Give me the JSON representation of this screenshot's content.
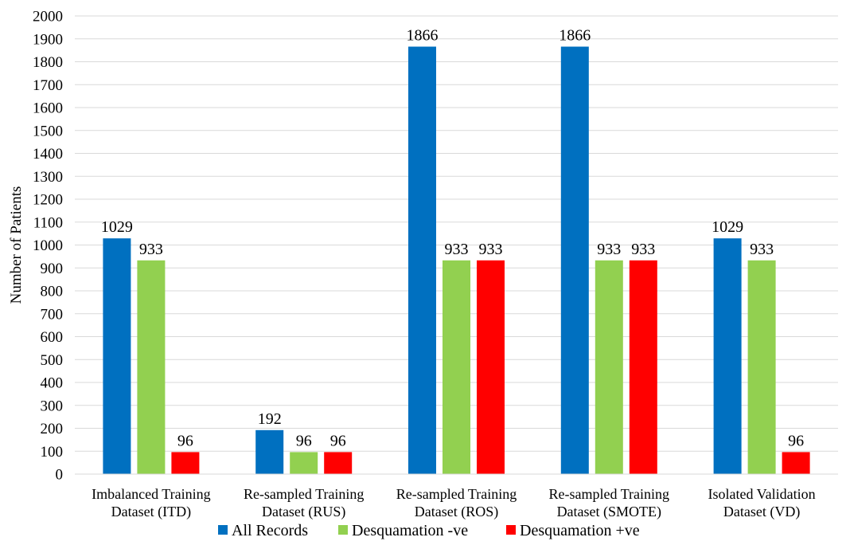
{
  "chart_data": {
    "type": "bar",
    "title": "",
    "xlabel": "",
    "ylabel": "Number of Patients",
    "ylim": [
      0,
      2000
    ],
    "yticks": [
      0,
      100,
      200,
      300,
      400,
      500,
      600,
      700,
      800,
      900,
      1000,
      1100,
      1200,
      1300,
      1400,
      1500,
      1600,
      1700,
      1800,
      1900,
      2000
    ],
    "grid": true,
    "legend_position": "bottom",
    "categories": [
      [
        "Imbalanced Training",
        "Dataset (ITD)"
      ],
      [
        "Re-sampled Training",
        "Dataset (RUS)"
      ],
      [
        "Re-sampled Training",
        "Dataset (ROS)"
      ],
      [
        "Re-sampled Training",
        "Dataset (SMOTE)"
      ],
      [
        "Isolated Validation",
        "Dataset (VD)"
      ]
    ],
    "series": [
      {
        "name": "All Records",
        "color": "#0070C0",
        "values": [
          1029,
          192,
          1866,
          1866,
          1029
        ]
      },
      {
        "name": "Desquamation -ve",
        "color": "#92D050",
        "values": [
          933,
          96,
          933,
          933,
          933
        ]
      },
      {
        "name": "Desquamation +ve",
        "color": "#FF0000",
        "values": [
          96,
          96,
          933,
          933,
          96
        ]
      }
    ],
    "data_labels": true
  }
}
